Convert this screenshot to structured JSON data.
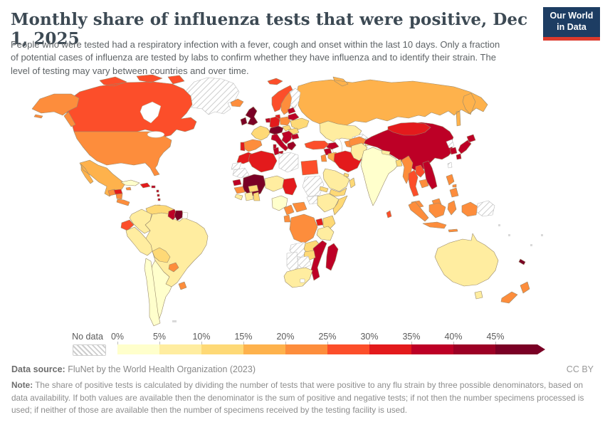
{
  "header": {
    "title": "Monthly share of influenza tests that were positive, Dec 1, 2025",
    "subtitle": "People who were tested had a respiratory infection with a fever, cough and onset within the last 10 days. Only a fraction of potential cases of influenza are tested by labs to confirm whether they have influenza and to identify their strain. The level of testing may vary between countries and over time.",
    "logo_line1": "Our World",
    "logo_line2": "in Data",
    "logo_bg": "#1d3d63",
    "logo_accent": "#dc3a2c"
  },
  "legend": {
    "no_data_label": "No data",
    "tick_labels": [
      "0%",
      "5%",
      "10%",
      "15%",
      "20%",
      "25%",
      "30%",
      "35%",
      "40%",
      "45%"
    ]
  },
  "footer": {
    "source_label": "Data source:",
    "source_text": " FluNet by the World Health Organization (2023)",
    "license": "CC BY",
    "note_label": "Note:",
    "note_text": " The share of positive tests is calculated by dividing the number of tests that were positive to any flu strain by three possible denominators, based on data availability. If both values are available then the denominator is the sum of positive and negative tests; if not then the number specimens processed is used; if neither of those are available then the number of specimens received by the testing facility is used."
  },
  "chart_data": {
    "type": "choropleth-map",
    "title": "Monthly share of influenza tests that were positive",
    "date": "Dec 1, 2025",
    "unit": "%",
    "legend_order": [
      "0-5%",
      "5-10%",
      "10-15%",
      "15-20%",
      "20-25%",
      "25-30%",
      "30-35%",
      "35-40%",
      "40-45%",
      "45%+"
    ],
    "bucket_colors": {
      "0-5%": "#FFFFCC",
      "5-10%": "#FFEDA0",
      "10-15%": "#FED976",
      "15-20%": "#FEB24C",
      "20-25%": "#FD8D3C",
      "25-30%": "#FC4E2A",
      "30-35%": "#E31A1C",
      "35-40%": "#BD0026",
      "40-45%": "#9C0025",
      "45%+": "#7A0025",
      "No data": "hatched"
    },
    "countries": {
      "Canada": "25-30%",
      "United States": "20-25%",
      "Mexico": "15-20%",
      "Guatemala": "20-25%",
      "Honduras": "30-35%",
      "Nicaragua": "20-25%",
      "Costa Rica": "20-25%",
      "Panama": "20-25%",
      "Cuba": "0-5%",
      "Jamaica": "20-25%",
      "Haiti": "30-35%",
      "Dominican Republic": "30-35%",
      "Puerto Rico": "35-40%",
      "Guadeloupe": "35-40%",
      "Trinidad and Tobago": "25-30%",
      "Venezuela": "10-15%",
      "Colombia": "5-10%",
      "Guyana": "35-40%",
      "Suriname": "45%+",
      "Ecuador": "25-30%",
      "Peru": "5-10%",
      "Brazil": "5-10%",
      "Bolivia": "10-15%",
      "Paraguay": "20-25%",
      "Uruguay": "20-25%",
      "Argentina": "0-5%",
      "Chile": "0-5%",
      "Greenland": "No data",
      "Iceland": "20-25%",
      "Svalbard": "25-30%",
      "Norway": "25-30%",
      "Sweden": "20-25%",
      "Finland": "No data",
      "Denmark": "30-35%",
      "United Kingdom": "45%+",
      "Ireland": "45%+",
      "Netherlands": "35-40%",
      "Belgium": "35-40%",
      "Germany": "30-35%",
      "France": "10-15%",
      "Spain": "20-25%",
      "Portugal": "30-35%",
      "Austria": "45%+",
      "Czechia": "45%+",
      "Switzerland": "45%+",
      "Poland": "20-25%",
      "Lithuania": "35-40%",
      "Latvia": "35-40%",
      "Estonia": "35-40%",
      "Belarus": "35-40%",
      "Ukraine": "10-15%",
      "Hungary": "10-15%",
      "Romania": "10-15%",
      "Serbia": "35-40%",
      "Bosnia and Herzegovina": "35-40%",
      "Croatia": "35-40%",
      "Albania": "40-45%",
      "Bulgaria": "35-40%",
      "Greece": "40-45%",
      "Italy": "35-40%",
      "Russia": "15-20%",
      "Kazakhstan": "5-10%",
      "Uzbekistan": "No data",
      "Turkmenistan": "20-25%",
      "Kyrgyzstan": "5-10%",
      "Tajikistan": "5-10%",
      "Georgia": "35-40%",
      "Azerbaijan": "35-40%",
      "Armenia": "35-40%",
      "Turkey": "25-30%",
      "Syria": "35-40%",
      "Iraq": "15-20%",
      "Iran": "30-35%",
      "Israel": "20-25%",
      "Jordan": "20-25%",
      "Saudi Arabia": "5-10%",
      "United Arab Emirates": "10-15%",
      "Yemen": "10-15%",
      "Oman": "10-15%",
      "Afghanistan": "20-25%",
      "Pakistan": "5-10%",
      "India": "0-5%",
      "Nepal": "5-10%",
      "Bangladesh": "10-15%",
      "Sri Lanka": "25-30%",
      "Myanmar": "20-25%",
      "Thailand": "25-30%",
      "Laos": "25-30%",
      "Vietnam": "35-40%",
      "Cambodia": "20-25%",
      "Malaysia": "20-25%",
      "Philippines": "20-25%",
      "Indonesia": "20-25%",
      "China": "35-40%",
      "Mongolia": "30-35%",
      "North Korea": "No data",
      "South Korea": "35-40%",
      "Japan": "35-40%",
      "Taiwan": "No data",
      "Papua New Guinea": "No data",
      "Australia": "5-10%",
      "New Zealand": "20-25%",
      "New Caledonia": "45%+",
      "Morocco": "30-35%",
      "Western Sahara": "No data",
      "Mauritania": "No data",
      "Algeria": "30-35%",
      "Tunisia": "35-40%",
      "Libya": "No data",
      "Egypt": "25-30%",
      "Mali": "45%+",
      "Senegal": "35-40%",
      "Guinea": "20-25%",
      "Sierra Leone": "5-10%",
      "Ivory Coast": "5-10%",
      "Ghana": "10-15%",
      "Burkina Faso": "10-15%",
      "Niger": "5-10%",
      "Nigeria": "0-5%",
      "Chad": "30-35%",
      "Sudan": "No data",
      "South Sudan": "No data",
      "Eritrea": "10-15%",
      "Ethiopia": "5-10%",
      "Somalia": "10-15%",
      "Cameroon": "20-25%",
      "Central African Republic": "20-25%",
      "Gabon": "20-25%",
      "Democratic Republic of Congo": "20-25%",
      "Uganda": "30-35%",
      "Kenya": "10-15%",
      "Tanzania": "5-10%",
      "Angola": "No data",
      "Zambia": "10-15%",
      "Malawi": "35-40%",
      "Mozambique": "35-40%",
      "Zimbabwe": "10-15%",
      "Botswana": "No data",
      "Namibia": "No data",
      "South Africa": "5-10%",
      "Madagascar": "35-40%"
    }
  }
}
